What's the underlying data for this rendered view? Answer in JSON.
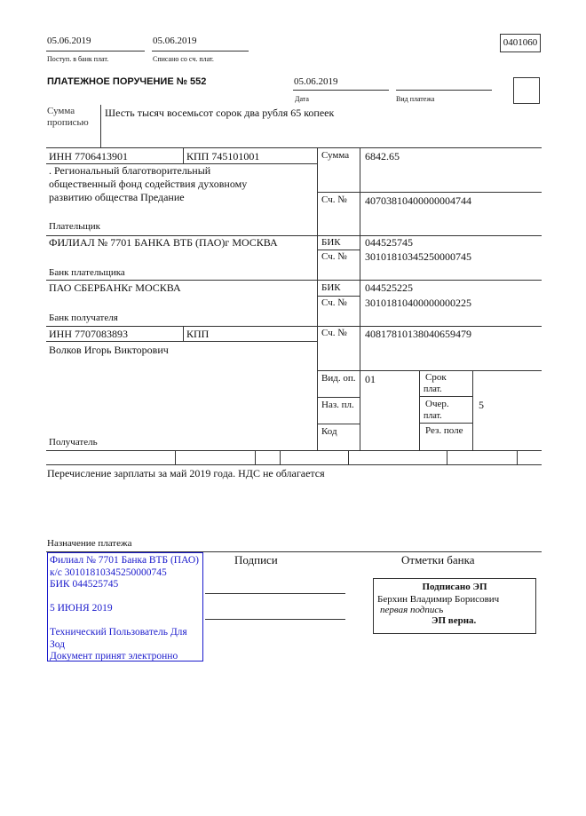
{
  "header": {
    "received_date": "05.06.2019",
    "received_label": "Поступ. в банк плат.",
    "debited_date": "05.06.2019",
    "debited_label": "Списано со сч. плат.",
    "form_code": "0401060"
  },
  "title": "ПЛАТЕЖНОЕ ПОРУЧЕНИЕ № 552",
  "date": "05.06.2019",
  "date_label": "Дата",
  "payment_type_label": "Вид платежа",
  "payment_type": "",
  "amount_words_label_1": "Сумма",
  "amount_words_label_2": "прописью",
  "amount_words": "Шесть тысяч восемьсот сорок два рубля 65 копеек",
  "payer": {
    "inn": "ИНН 7706413901",
    "kpp": "КПП 745101001",
    "name_lines": [
      ". Региональный благотворительный",
      "общественный фонд содействия духовному",
      "развитию общества Предание"
    ],
    "label": "Плательщик",
    "account_label": "Сч. №",
    "account": "40703810400000004744"
  },
  "amount_label": "Сумма",
  "amount": "6842.65",
  "payer_bank": {
    "name": "ФИЛИАЛ № 7701 БАНКА ВТБ (ПАО)г МОСКВА",
    "label": "Банк плательщика",
    "bik_label": "БИК",
    "bik": "044525745",
    "account_label": "Сч. №",
    "account": "30101810345250000745"
  },
  "payee_bank": {
    "name": "ПАО СБЕРБАНКг МОСКВА",
    "label": "Банк получателя",
    "bik_label": "БИК",
    "bik": "044525225",
    "account_label": "Сч. №",
    "account": "30101810400000000225"
  },
  "payee": {
    "inn": "ИНН 7707083893",
    "kpp": "КПП",
    "name": "Волков Игорь Викторович",
    "label": "Получатель",
    "account_label": "Сч. №",
    "account": "40817810138040659479"
  },
  "codes": {
    "op_type_label": "Вид. оп.",
    "op_type": "01",
    "purpose_code_label": "Наз. пл.",
    "code_label": "Код",
    "term_label_1": "Срок",
    "term_label_2": "плат.",
    "priority_label_1": "Очер.",
    "priority_label_2": "плат.",
    "priority": "5",
    "reserve_label": "Рез. поле"
  },
  "purpose": "Перечисление зарплаты за май 2019 года. НДС не облагается",
  "purpose_label": "Назначение платежа",
  "signatures_label": "Подписи",
  "bank_marks_label": "Отметки банка",
  "bank_stamp": {
    "lines": [
      "Филиал № 7701 Банка ВТБ (ПАО)",
      "к/с 30101810345250000745",
      "БИК 044525745",
      "",
      "5 ИЮНЯ 2019",
      "",
      "Технический Пользователь Для",
      "Зод",
      "Документ принят электронно"
    ],
    "color": "#1a1acc"
  },
  "esign": {
    "title": "Подписано ЭП",
    "signer": "Берхин Владимир Борисович",
    "role": "первая подпись",
    "status": "ЭП верна."
  }
}
